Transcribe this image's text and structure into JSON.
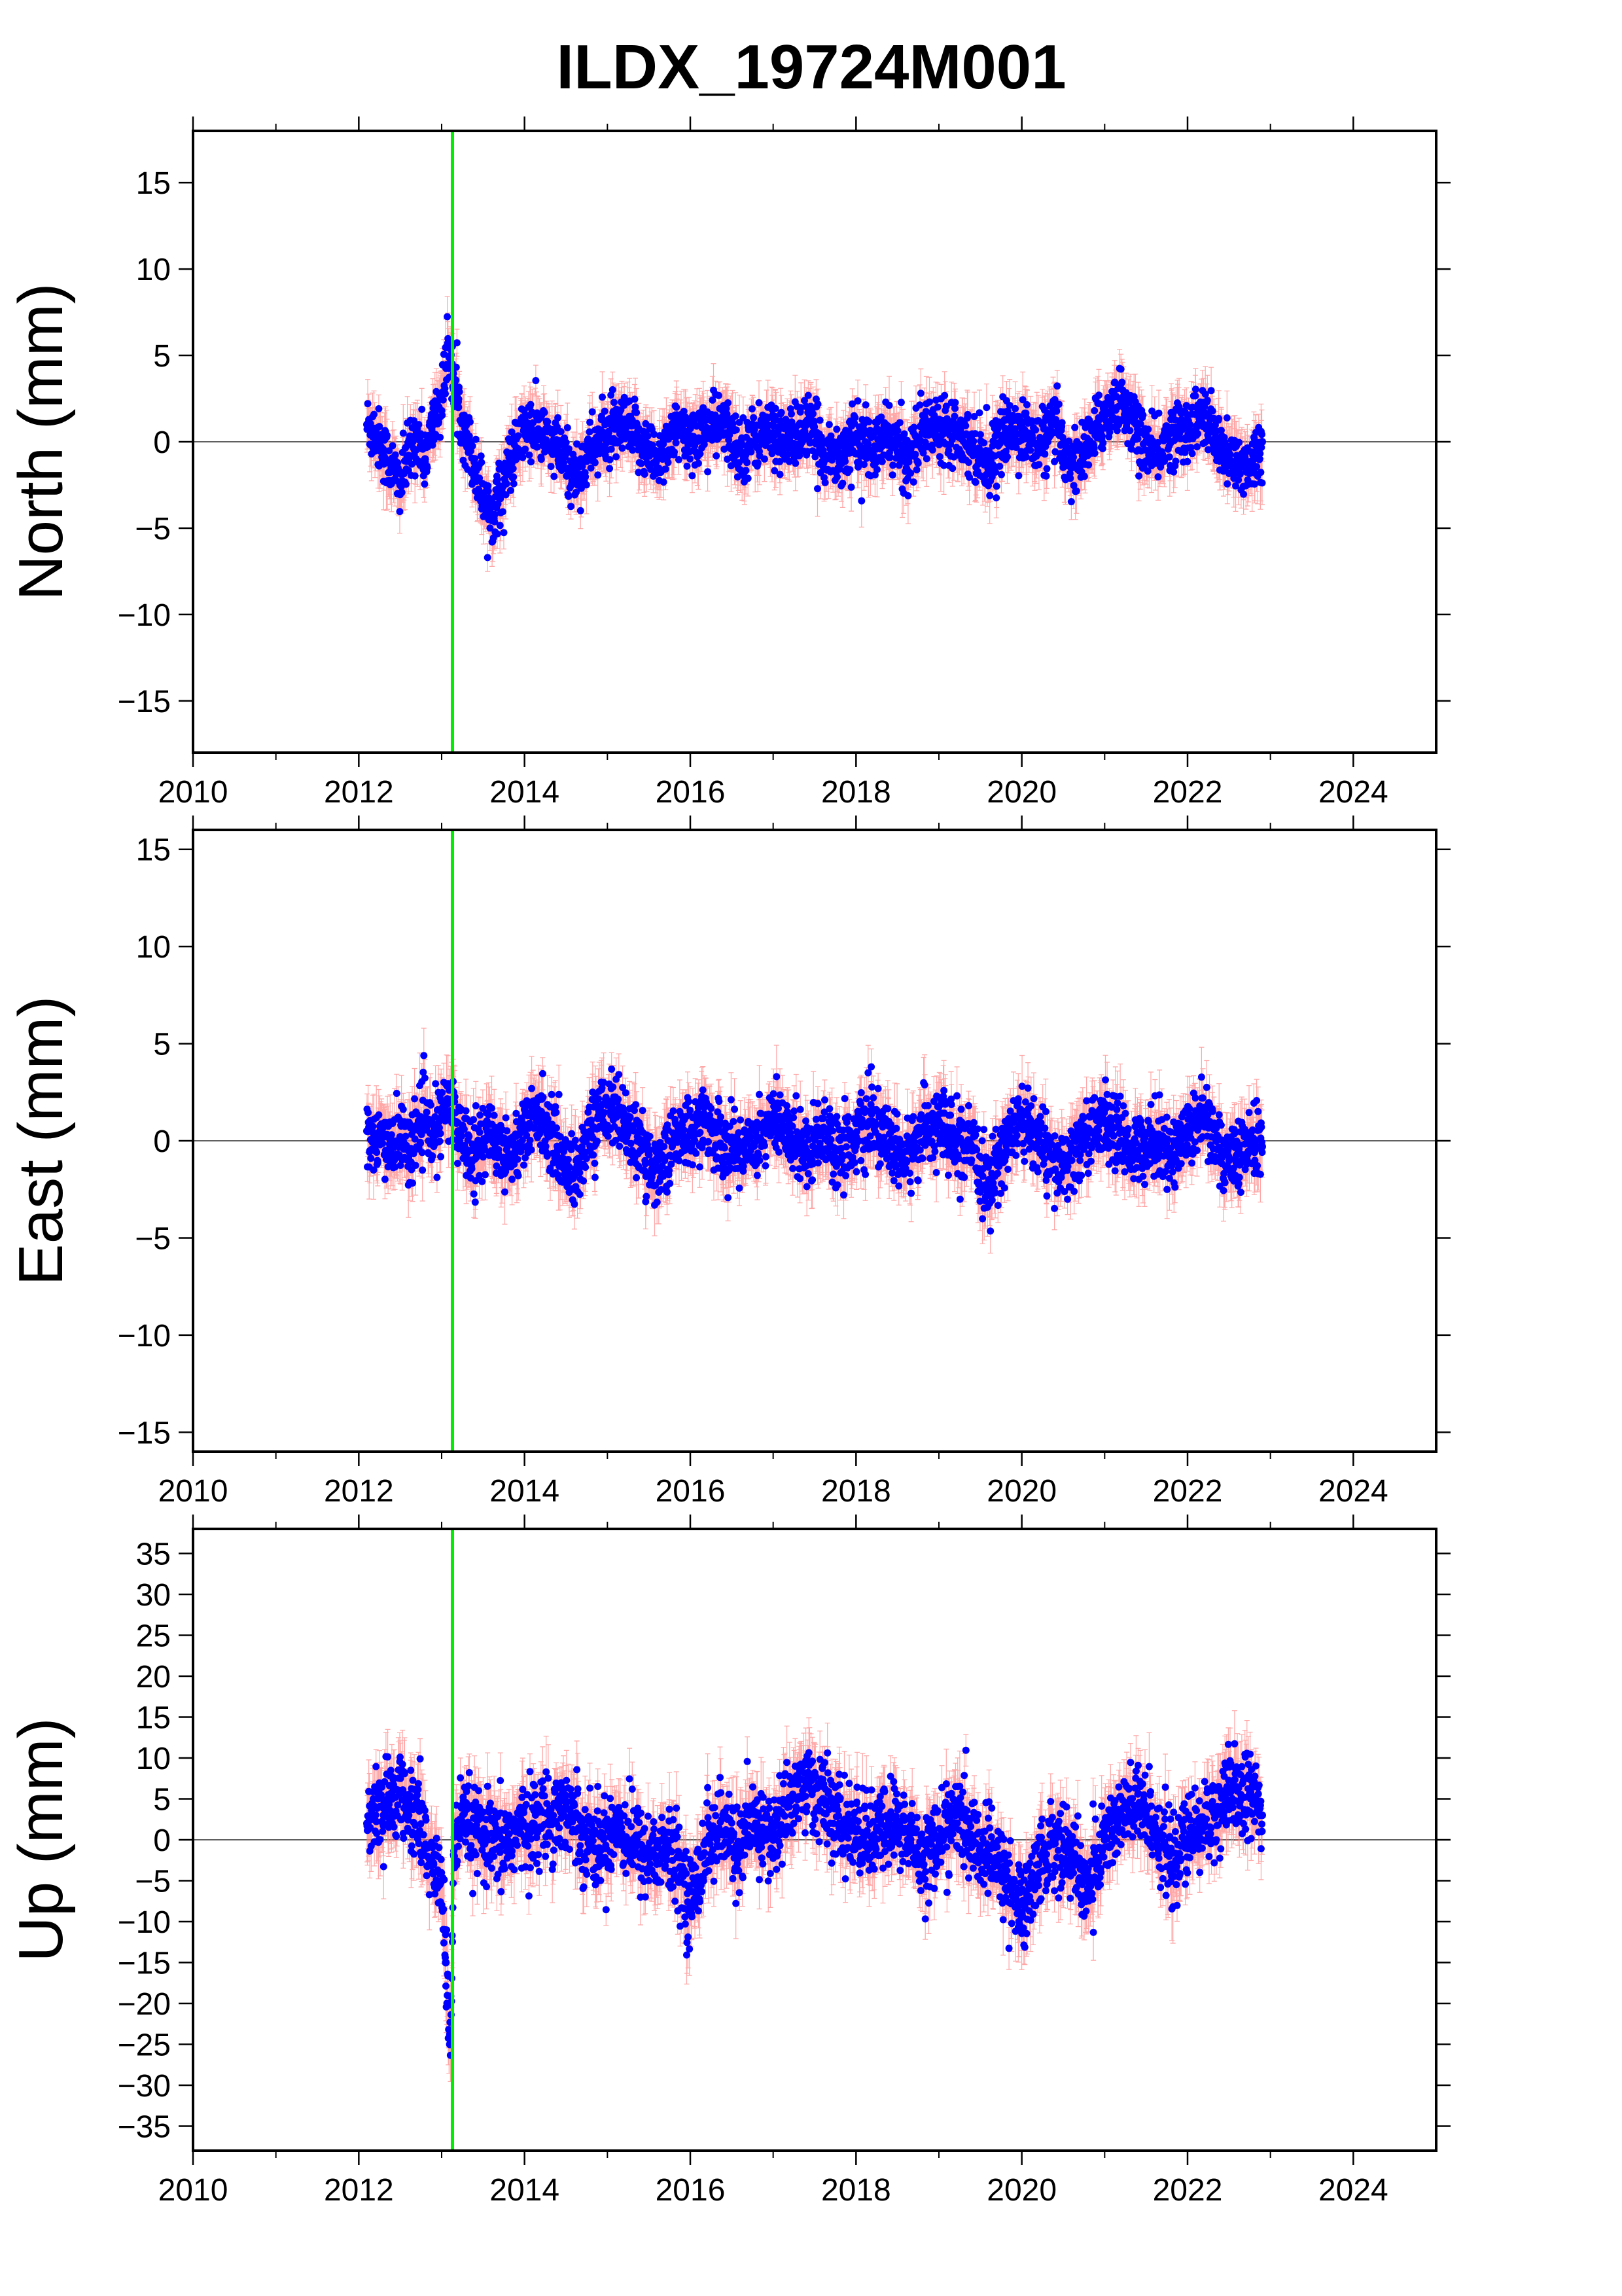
{
  "title": "ILDX_19724M001",
  "colors": {
    "points": "#0000ff",
    "error_bars": "#ff8080",
    "event_line": "#00ee00",
    "zero_line": "#000000"
  },
  "chart_data": [
    {
      "type": "scatter",
      "panel": "north",
      "ylabel": "North (mm)",
      "xlim": [
        2010,
        2025
      ],
      "ylim": [
        -18,
        18
      ],
      "xticks": [
        2010,
        2012,
        2014,
        2016,
        2018,
        2020,
        2022,
        2024
      ],
      "yticks": [
        -15,
        -10,
        -5,
        0,
        5,
        10,
        15
      ],
      "event_line_x": 2013.13,
      "zero_line": true,
      "series": [
        {
          "x": [
            2012.1,
            2012.2,
            2012.3,
            2012.4,
            2012.5,
            2012.6,
            2012.7,
            2012.8,
            2012.9,
            2013.0,
            2013.1,
            2013.15,
            2013.2,
            2013.3,
            2013.4,
            2013.5,
            2013.6,
            2013.7,
            2013.8,
            2013.9,
            2014.0,
            2014.2,
            2014.4,
            2014.6,
            2014.8,
            2015.0,
            2015.2,
            2015.4,
            2015.6,
            2015.8,
            2016.0,
            2016.2,
            2016.4,
            2016.6,
            2016.8,
            2017.0,
            2017.2,
            2017.4,
            2017.6,
            2017.8,
            2018.0,
            2018.2,
            2018.4,
            2018.6,
            2018.8,
            2019.0,
            2019.2,
            2019.4,
            2019.6,
            2019.8,
            2020.0,
            2020.2,
            2020.4,
            2020.6,
            2020.8,
            2021.0,
            2021.2,
            2021.4,
            2021.6,
            2021.8,
            2022.0,
            2022.2,
            2022.4,
            2022.6,
            2022.8,
            2022.9
          ],
          "y": [
            1.0,
            0.5,
            -0.5,
            -1.5,
            -2.5,
            -0.8,
            0.5,
            -1.0,
            1.0,
            2.5,
            5.5,
            3.0,
            2.0,
            0.5,
            -1.5,
            -3.0,
            -4.2,
            -3.0,
            -1.5,
            -0.5,
            0.8,
            0.5,
            -0.5,
            -2.0,
            -0.5,
            0.5,
            0.8,
            0.0,
            -1.0,
            0.5,
            0.2,
            0.8,
            1.0,
            -0.5,
            0.3,
            0.5,
            0.0,
            1.0,
            -0.5,
            -0.8,
            0.2,
            -0.5,
            0.3,
            -1.0,
            0.5,
            1.0,
            0.8,
            -0.2,
            -1.2,
            0.5,
            0.8,
            -0.3,
            1.0,
            -1.5,
            -0.2,
            1.5,
            2.5,
            0.5,
            -1.0,
            0.5,
            0.8,
            1.5,
            -0.5,
            -1.5,
            -1.0,
            0.0
          ]
        }
      ]
    },
    {
      "type": "scatter",
      "panel": "east",
      "ylabel": "East (mm)",
      "xlim": [
        2010,
        2025
      ],
      "ylim": [
        -16,
        16
      ],
      "xticks": [
        2010,
        2012,
        2014,
        2016,
        2018,
        2020,
        2022,
        2024
      ],
      "yticks": [
        -15,
        -10,
        -5,
        0,
        5,
        10,
        15
      ],
      "event_line_x": 2013.13,
      "zero_line": true,
      "series": [
        {
          "x": [
            2012.1,
            2012.2,
            2012.3,
            2012.4,
            2012.5,
            2012.6,
            2012.7,
            2012.8,
            2012.9,
            2013.0,
            2013.1,
            2013.2,
            2013.4,
            2013.6,
            2013.8,
            2014.0,
            2014.2,
            2014.4,
            2014.6,
            2014.8,
            2015.0,
            2015.2,
            2015.4,
            2015.6,
            2015.8,
            2016.0,
            2016.2,
            2016.4,
            2016.6,
            2016.8,
            2017.0,
            2017.2,
            2017.4,
            2017.6,
            2017.8,
            2018.0,
            2018.2,
            2018.4,
            2018.6,
            2018.8,
            2019.0,
            2019.2,
            2019.4,
            2019.6,
            2019.8,
            2020.0,
            2020.2,
            2020.4,
            2020.6,
            2020.8,
            2021.0,
            2021.2,
            2021.4,
            2021.6,
            2021.8,
            2022.0,
            2022.2,
            2022.4,
            2022.6,
            2022.8,
            2022.9
          ],
          "y": [
            0.5,
            -0.5,
            0.3,
            -0.3,
            0.2,
            -0.5,
            0.6,
            1.0,
            0.0,
            1.2,
            2.0,
            0.5,
            -0.5,
            0.3,
            -0.8,
            0.5,
            1.5,
            -0.5,
            -1.8,
            0.5,
            2.0,
            1.0,
            -0.5,
            -1.5,
            0.0,
            0.5,
            1.0,
            -0.3,
            -0.5,
            0.2,
            1.0,
            0.3,
            -0.5,
            0.5,
            -0.5,
            0.2,
            1.0,
            -0.3,
            -1.0,
            0.5,
            1.0,
            -0.2,
            -0.5,
            -2.5,
            0.0,
            1.0,
            0.2,
            -1.5,
            -1.0,
            0.5,
            1.0,
            0.0,
            -0.5,
            0.3,
            -0.8,
            0.5,
            1.5,
            -0.5,
            -1.2,
            0.0,
            -0.3
          ]
        }
      ]
    },
    {
      "type": "scatter",
      "panel": "up",
      "ylabel": "Up (mm)",
      "xlim": [
        2010,
        2025
      ],
      "ylim": [
        -38,
        38
      ],
      "xticks": [
        2010,
        2012,
        2014,
        2016,
        2018,
        2020,
        2022,
        2024
      ],
      "yticks": [
        -35,
        -30,
        -25,
        -20,
        -15,
        -10,
        -5,
        0,
        5,
        10,
        15,
        20,
        25,
        30,
        35
      ],
      "event_line_x": 2013.13,
      "zero_line": true,
      "series": [
        {
          "x": [
            2012.1,
            2012.2,
            2012.3,
            2012.4,
            2012.5,
            2012.6,
            2012.7,
            2012.8,
            2012.9,
            2013.0,
            2013.05,
            2013.1,
            2013.15,
            2013.2,
            2013.3,
            2013.5,
            2013.7,
            2013.9,
            2014.1,
            2014.3,
            2014.5,
            2014.7,
            2014.9,
            2015.1,
            2015.3,
            2015.5,
            2015.7,
            2015.9,
            2016.0,
            2016.2,
            2016.4,
            2016.6,
            2016.8,
            2017.0,
            2017.2,
            2017.4,
            2017.6,
            2017.8,
            2018.0,
            2018.2,
            2018.4,
            2018.6,
            2018.8,
            2019.0,
            2019.2,
            2019.4,
            2019.6,
            2019.8,
            2020.0,
            2020.2,
            2020.4,
            2020.6,
            2020.8,
            2021.0,
            2021.2,
            2021.4,
            2021.6,
            2021.8,
            2022.0,
            2022.2,
            2022.4,
            2022.6,
            2022.8,
            2022.9
          ],
          "y": [
            2.0,
            4.0,
            3.0,
            5.0,
            6.0,
            3.0,
            4.0,
            -1.0,
            -3.0,
            -5.0,
            -15.0,
            -25.0,
            -2.0,
            1.0,
            2.0,
            0.0,
            -1.0,
            1.0,
            2.0,
            3.0,
            4.0,
            1.0,
            -1.0,
            2.0,
            0.0,
            -2.0,
            -1.0,
            -4.0,
            -8.0,
            0.0,
            1.0,
            -1.0,
            2.0,
            0.0,
            5.0,
            7.0,
            5.0,
            2.0,
            1.0,
            0.0,
            2.0,
            1.0,
            -2.0,
            0.0,
            3.0,
            0.0,
            -2.0,
            -4.0,
            -9.0,
            -3.0,
            0.0,
            -2.0,
            -6.0,
            0.0,
            3.0,
            4.0,
            2.0,
            -3.0,
            0.0,
            2.0,
            4.0,
            6.0,
            5.0,
            3.0
          ]
        }
      ]
    }
  ]
}
